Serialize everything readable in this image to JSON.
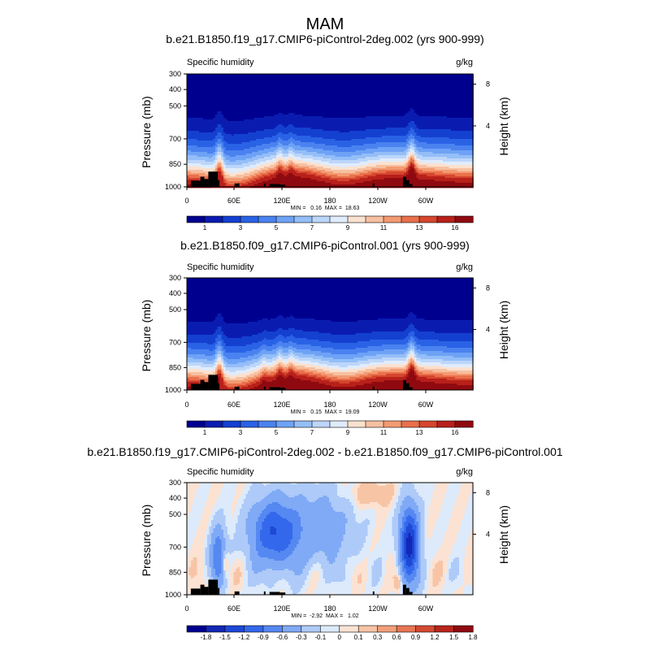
{
  "figure": {
    "title": "MAM"
  },
  "chart_data": [
    {
      "type": "heatmap",
      "title": "b.e21.B1850.f19_g17.CMIP6-piControl-2deg.002 (yrs 900-999)",
      "variable": "Specific humidity",
      "units": "g/kg",
      "xlabel": "",
      "ylabel": "Pressure (mb)",
      "ylabel_right": "Height (km)",
      "x_ticks": [
        "0",
        "60E",
        "120E",
        "180",
        "120W",
        "60W"
      ],
      "y_ticks": [
        "300",
        "400",
        "500",
        "700",
        "850",
        "1000"
      ],
      "y_right_ticks": [
        "8",
        "4"
      ],
      "minmax_text": "MIN =   0.16  MAX =  18.63",
      "min": 0.16,
      "max": 18.63,
      "colorbar_labels": [
        "1",
        "3",
        "5",
        "7",
        "9",
        "11",
        "13",
        "16"
      ],
      "levels": [
        1,
        2,
        3,
        4,
        5,
        6,
        7,
        8,
        9,
        10,
        11,
        12,
        13,
        14,
        16
      ]
    },
    {
      "type": "heatmap",
      "title": "b.e21.B1850.f09_g17.CMIP6-piControl.001 (yrs 900-999)",
      "variable": "Specific humidity",
      "units": "g/kg",
      "xlabel": "",
      "ylabel": "Pressure (mb)",
      "ylabel_right": "Height (km)",
      "x_ticks": [
        "0",
        "60E",
        "120E",
        "180",
        "120W",
        "60W"
      ],
      "y_ticks": [
        "300",
        "400",
        "500",
        "700",
        "850",
        "1000"
      ],
      "y_right_ticks": [
        "8",
        "4"
      ],
      "minmax_text": "MIN =   0.15  MAX =  19.09",
      "min": 0.15,
      "max": 19.09,
      "colorbar_labels": [
        "1",
        "3",
        "5",
        "7",
        "9",
        "11",
        "13",
        "16"
      ],
      "levels": [
        1,
        2,
        3,
        4,
        5,
        6,
        7,
        8,
        9,
        10,
        11,
        12,
        13,
        14,
        16
      ]
    },
    {
      "type": "heatmap",
      "title": "b.e21.B1850.f19_g17.CMIP6-piControl-2deg.002 - b.e21.B1850.f09_g17.CMIP6-piControl.001",
      "variable": "Specific humidity",
      "units": "g/kg",
      "xlabel": "",
      "ylabel": "Pressure (mb)",
      "ylabel_right": "Height (km)",
      "x_ticks": [
        "0",
        "60E",
        "120E",
        "180",
        "120W",
        "60W"
      ],
      "y_ticks": [
        "300",
        "400",
        "500",
        "700",
        "850",
        "1000"
      ],
      "y_right_ticks": [
        "8",
        "4"
      ],
      "minmax_text": "MIN =  -2.92  MAX =   1.02",
      "min": -2.92,
      "max": 1.02,
      "colorbar_labels": [
        "-1.8",
        "-1.5",
        "-1.2",
        "-0.9",
        "-0.6",
        "-0.3",
        "-0.1",
        "0",
        "0.1",
        "0.3",
        "0.6",
        "0.9",
        "1.2",
        "1.5",
        "1.8"
      ],
      "levels": [
        -1.8,
        -1.5,
        -1.2,
        -0.9,
        -0.6,
        -0.3,
        -0.1,
        0,
        0.1,
        0.3,
        0.6,
        0.9,
        1.2,
        1.5,
        1.8
      ]
    }
  ],
  "colors": {
    "abs": [
      "#00008f",
      "#0a1cb0",
      "#1440d0",
      "#2a62e6",
      "#4a82f0",
      "#6ea2f6",
      "#94bef8",
      "#bcd6fa",
      "#e0ecfc",
      "#fbe1cf",
      "#f7c0a0",
      "#f39a72",
      "#e9704c",
      "#d5462e",
      "#b8201a",
      "#8f0a10"
    ],
    "diff": [
      "#00008f",
      "#1228b6",
      "#1e48d6",
      "#3468ec",
      "#5688f2",
      "#80aaf6",
      "#aecaf8",
      "#dceafb",
      "#fbe2d2",
      "#f7c4a6",
      "#f2a07c",
      "#e87654",
      "#d44a32",
      "#b8261c",
      "#8f0a10"
    ]
  }
}
